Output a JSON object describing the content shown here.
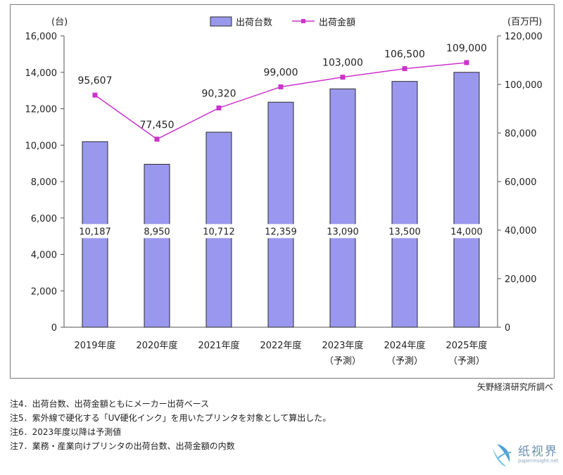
{
  "colors": {
    "bar_fill": "#9a98ee",
    "bar_stroke": "#2a2a2a",
    "line": "#cc33cc",
    "marker": "#cc33cc"
  },
  "left_unit": "(台)",
  "right_unit": "(百万円)",
  "legend": {
    "bars": "出荷台数",
    "line": "出荷金額"
  },
  "chart_data": {
    "type": "bar",
    "categories": [
      "2019年度",
      "2020年度",
      "2021年度",
      "2022年度",
      "2023年度",
      "2024年度",
      "2025年度"
    ],
    "category_sublabels": [
      "",
      "",
      "",
      "",
      "（予測）",
      "（予測）",
      "（予測）"
    ],
    "series": [
      {
        "name": "出荷台数",
        "type": "bar",
        "axis": "left",
        "values": [
          10187,
          8950,
          10712,
          12359,
          13090,
          13500,
          14000
        ],
        "labels": [
          "10,187",
          "8,950",
          "10,712",
          "12,359",
          "13,090",
          "13,500",
          "14,000"
        ]
      },
      {
        "name": "出荷金額",
        "type": "line",
        "axis": "right",
        "values": [
          95607,
          77450,
          90320,
          99000,
          103000,
          106500,
          109000
        ],
        "labels": [
          "95,607",
          "77,450",
          "90,320",
          "99,000",
          "103,000",
          "106,500",
          "109,000"
        ]
      }
    ],
    "y_left": {
      "ylim": [
        0,
        16000
      ],
      "ticks": [
        "0",
        "2,000",
        "4,000",
        "6,000",
        "8,000",
        "10,000",
        "12,000",
        "14,000",
        "16,000"
      ]
    },
    "y_right": {
      "ylim": [
        0,
        120000
      ],
      "ticks": [
        "0",
        "20,000",
        "40,000",
        "60,000",
        "80,000",
        "100,000",
        "120,000"
      ]
    },
    "legend_position": "top-center",
    "grid": false
  },
  "source": "矢野経済研究所調べ",
  "notes": [
    "注4．出荷台数、出荷金額ともにメーカー出荷ベース",
    "注5．紫外線で硬化する「UV硬化インク」を用いたプリンタを対象として算出した。",
    "注6．2023年度以降は予測値",
    "注7．業務・産業向けプリンタの出荷台数、出荷金額の内数"
  ],
  "watermark": {
    "title": "纸视界",
    "subtitle": "paperinsight.net"
  }
}
